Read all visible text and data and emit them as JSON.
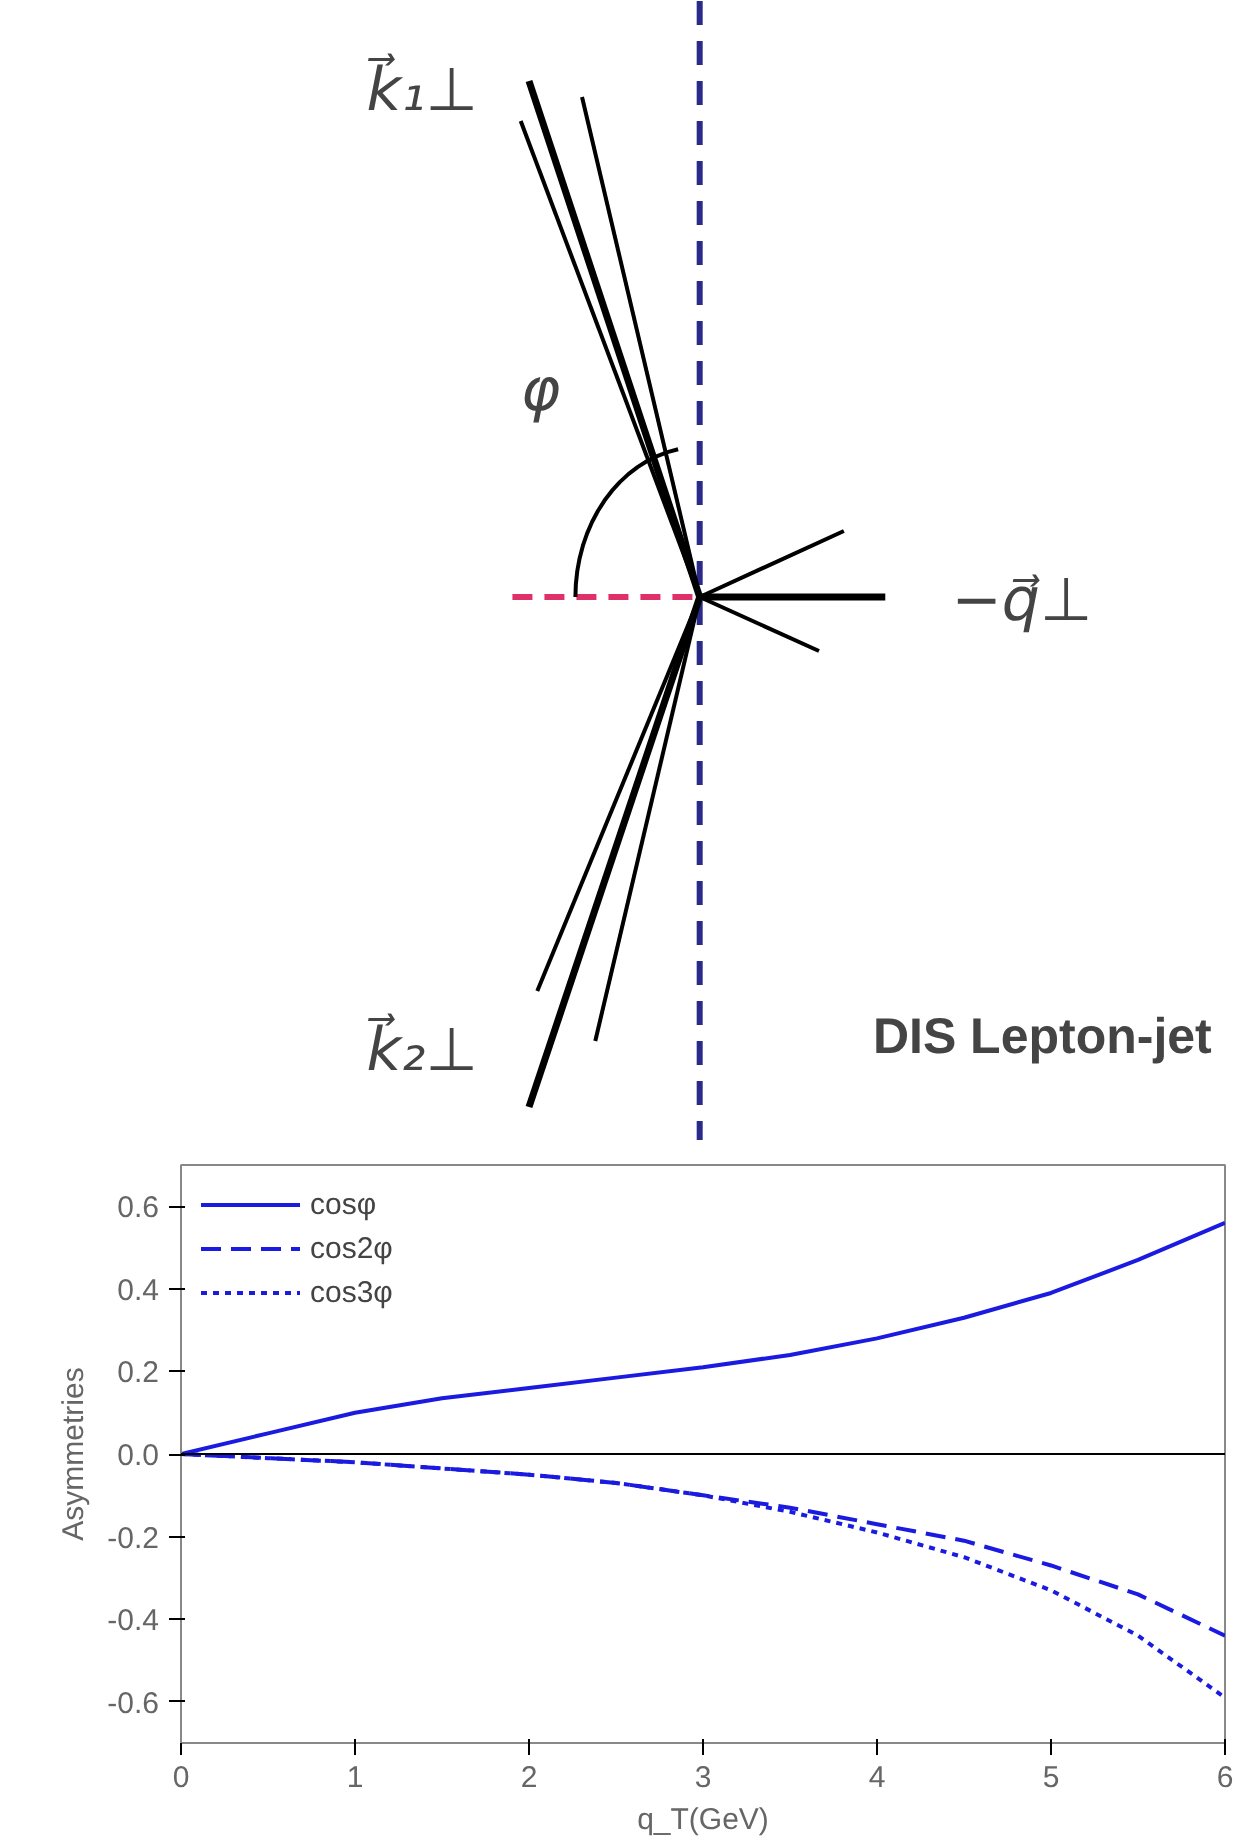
{
  "chart_data": [
    {
      "type": "other",
      "annotations": [
        "k⃗₁⊥",
        "φ",
        "−q⃗⊥",
        "k⃗₂⊥"
      ]
    },
    {
      "type": "line",
      "title": "DIS Lepton-jet",
      "xlabel": "q_T(GeV)",
      "ylabel": "Asymmetries",
      "x": [
        0,
        0.5,
        1,
        1.5,
        2,
        2.5,
        3,
        3.5,
        4,
        4.5,
        5,
        5.5,
        6
      ],
      "series": [
        {
          "name": "cosφ",
          "color": "#1a1ae0",
          "line_style": "solid",
          "values": [
            0,
            0.05,
            0.1,
            0.135,
            0.16,
            0.185,
            0.21,
            0.24,
            0.28,
            0.33,
            0.39,
            0.47,
            0.56
          ]
        },
        {
          "name": "cos2φ",
          "color": "#1a1ae0",
          "line_style": "dashed",
          "values": [
            0,
            -0.01,
            -0.02,
            -0.035,
            -0.05,
            -0.07,
            -0.1,
            -0.13,
            -0.17,
            -0.21,
            -0.27,
            -0.34,
            -0.44
          ]
        },
        {
          "name": "cos3φ",
          "color": "#1a1ae0",
          "line_style": "dotted",
          "values": [
            0,
            -0.01,
            -0.02,
            -0.035,
            -0.05,
            -0.07,
            -0.1,
            -0.14,
            -0.19,
            -0.25,
            -0.33,
            -0.44,
            -0.59
          ]
        }
      ],
      "xlim": [
        0,
        6
      ],
      "ylim": [
        -0.7,
        0.7
      ],
      "xticks": [
        0,
        1,
        2,
        3,
        4,
        5,
        6
      ],
      "yticks": [
        -0.6,
        -0.4,
        -0.2,
        {
          "value": 0,
          "label": "0.0"
        },
        0.2,
        0.4,
        0.6
      ],
      "ref_lines": [
        {
          "axis": "y",
          "value": 0,
          "color": "#000000"
        }
      ],
      "grid": false,
      "legend": "top left"
    }
  ]
}
